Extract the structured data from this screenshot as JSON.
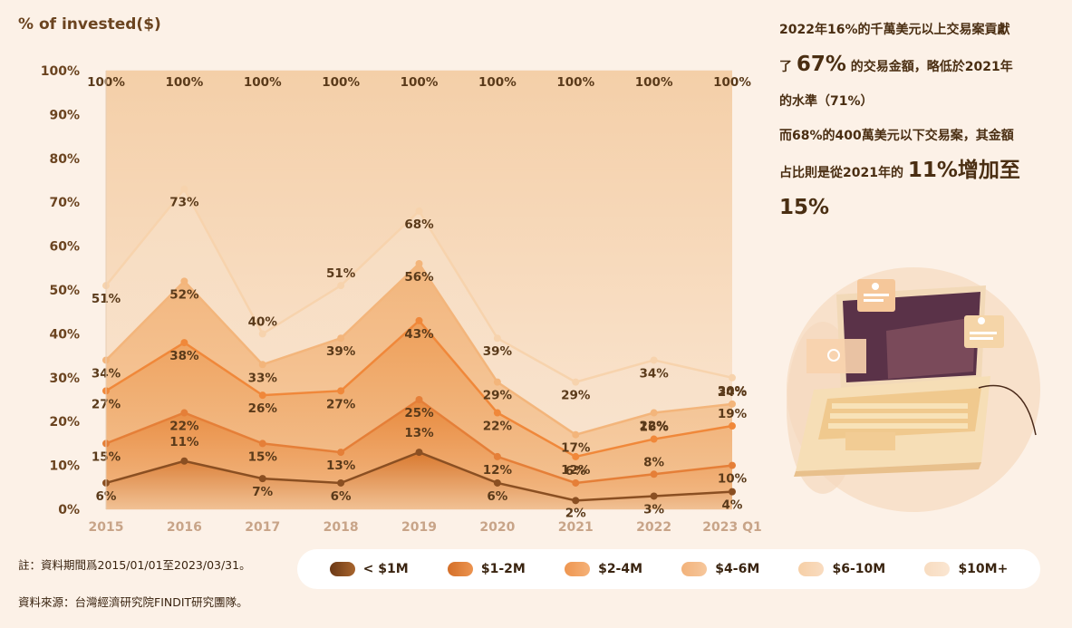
{
  "headline": {
    "line1": "2022年16%的千萬美元以上交易案貢獻",
    "line2_pre": "了 ",
    "line2_big": "67%",
    "line2_post": " 的交易金額，略低於2021年",
    "line3": "的水準（71%）",
    "line4": "而68%的400萬美元以下交易案，其金額",
    "line5_pre": "占比則是從2021年的 ",
    "line5_big": "11%增加至",
    "line6_big": "15%"
  },
  "footnotes": {
    "note": "註：資料期間爲2015/01/01至2023/03/31。",
    "source": "資料來源：台灣經濟研究院FINDIT研究團隊。"
  },
  "chart_data": {
    "type": "area",
    "ylabel": "% of invested($)",
    "ylim": [
      0,
      100
    ],
    "yticks": [
      "0%",
      "10%",
      "20%",
      "30%",
      "40%",
      "50%",
      "60%",
      "70%",
      "80%",
      "90%",
      "100%"
    ],
    "categories": [
      "2015",
      "2016",
      "2017",
      "2018",
      "2019",
      "2020",
      "2021",
      "2022",
      "2023 Q1"
    ],
    "series": [
      {
        "name": "< $1M",
        "color": "#8a4f22",
        "values": [
          6,
          11,
          7,
          6,
          13,
          6,
          2,
          3,
          4
        ],
        "labels": [
          "6%",
          "11%",
          "7%",
          "6%",
          "13%",
          "6%",
          "2%",
          "3%",
          "4%"
        ]
      },
      {
        "name": "$1-2M",
        "color": "#e07a35",
        "values": [
          15,
          22,
          15,
          13,
          25,
          12,
          6,
          8,
          10
        ],
        "labels": [
          "15%",
          "22%",
          "15%",
          "13%",
          "25%",
          "12%",
          "6%",
          "8%",
          "10%"
        ]
      },
      {
        "name": "$2-4M",
        "color": "#f08c3c",
        "values": [
          27,
          38,
          26,
          27,
          43,
          22,
          12,
          16,
          19
        ],
        "labels": [
          "27%",
          "38%",
          "26%",
          "27%",
          "43%",
          "22%",
          "12%",
          "16%",
          "19%"
        ]
      },
      {
        "name": "$4-6M",
        "color": "#f3b47a",
        "values": [
          34,
          52,
          33,
          39,
          56,
          29,
          17,
          22,
          24
        ],
        "labels": [
          "34%",
          "52%",
          "33%",
          "39%",
          "56%",
          "29%",
          "17%",
          "22%",
          "24%"
        ]
      },
      {
        "name": "$6-10M",
        "color": "#f6d2aa",
        "values": [
          51,
          73,
          40,
          51,
          68,
          39,
          29,
          34,
          30
        ],
        "labels": [
          "51%",
          "73%",
          "40%",
          "51%",
          "68%",
          "39%",
          "29%",
          "34%",
          "30%"
        ]
      },
      {
        "name": "$10M+",
        "color": "#f8dfc4",
        "values": [
          100,
          100,
          100,
          100,
          100,
          100,
          100,
          100,
          100
        ],
        "labels": [
          "100%",
          "100%",
          "100%",
          "100%",
          "100%",
          "100%",
          "100%",
          "100%",
          "100%"
        ]
      }
    ],
    "legend_position": "bottom",
    "grid": true
  }
}
